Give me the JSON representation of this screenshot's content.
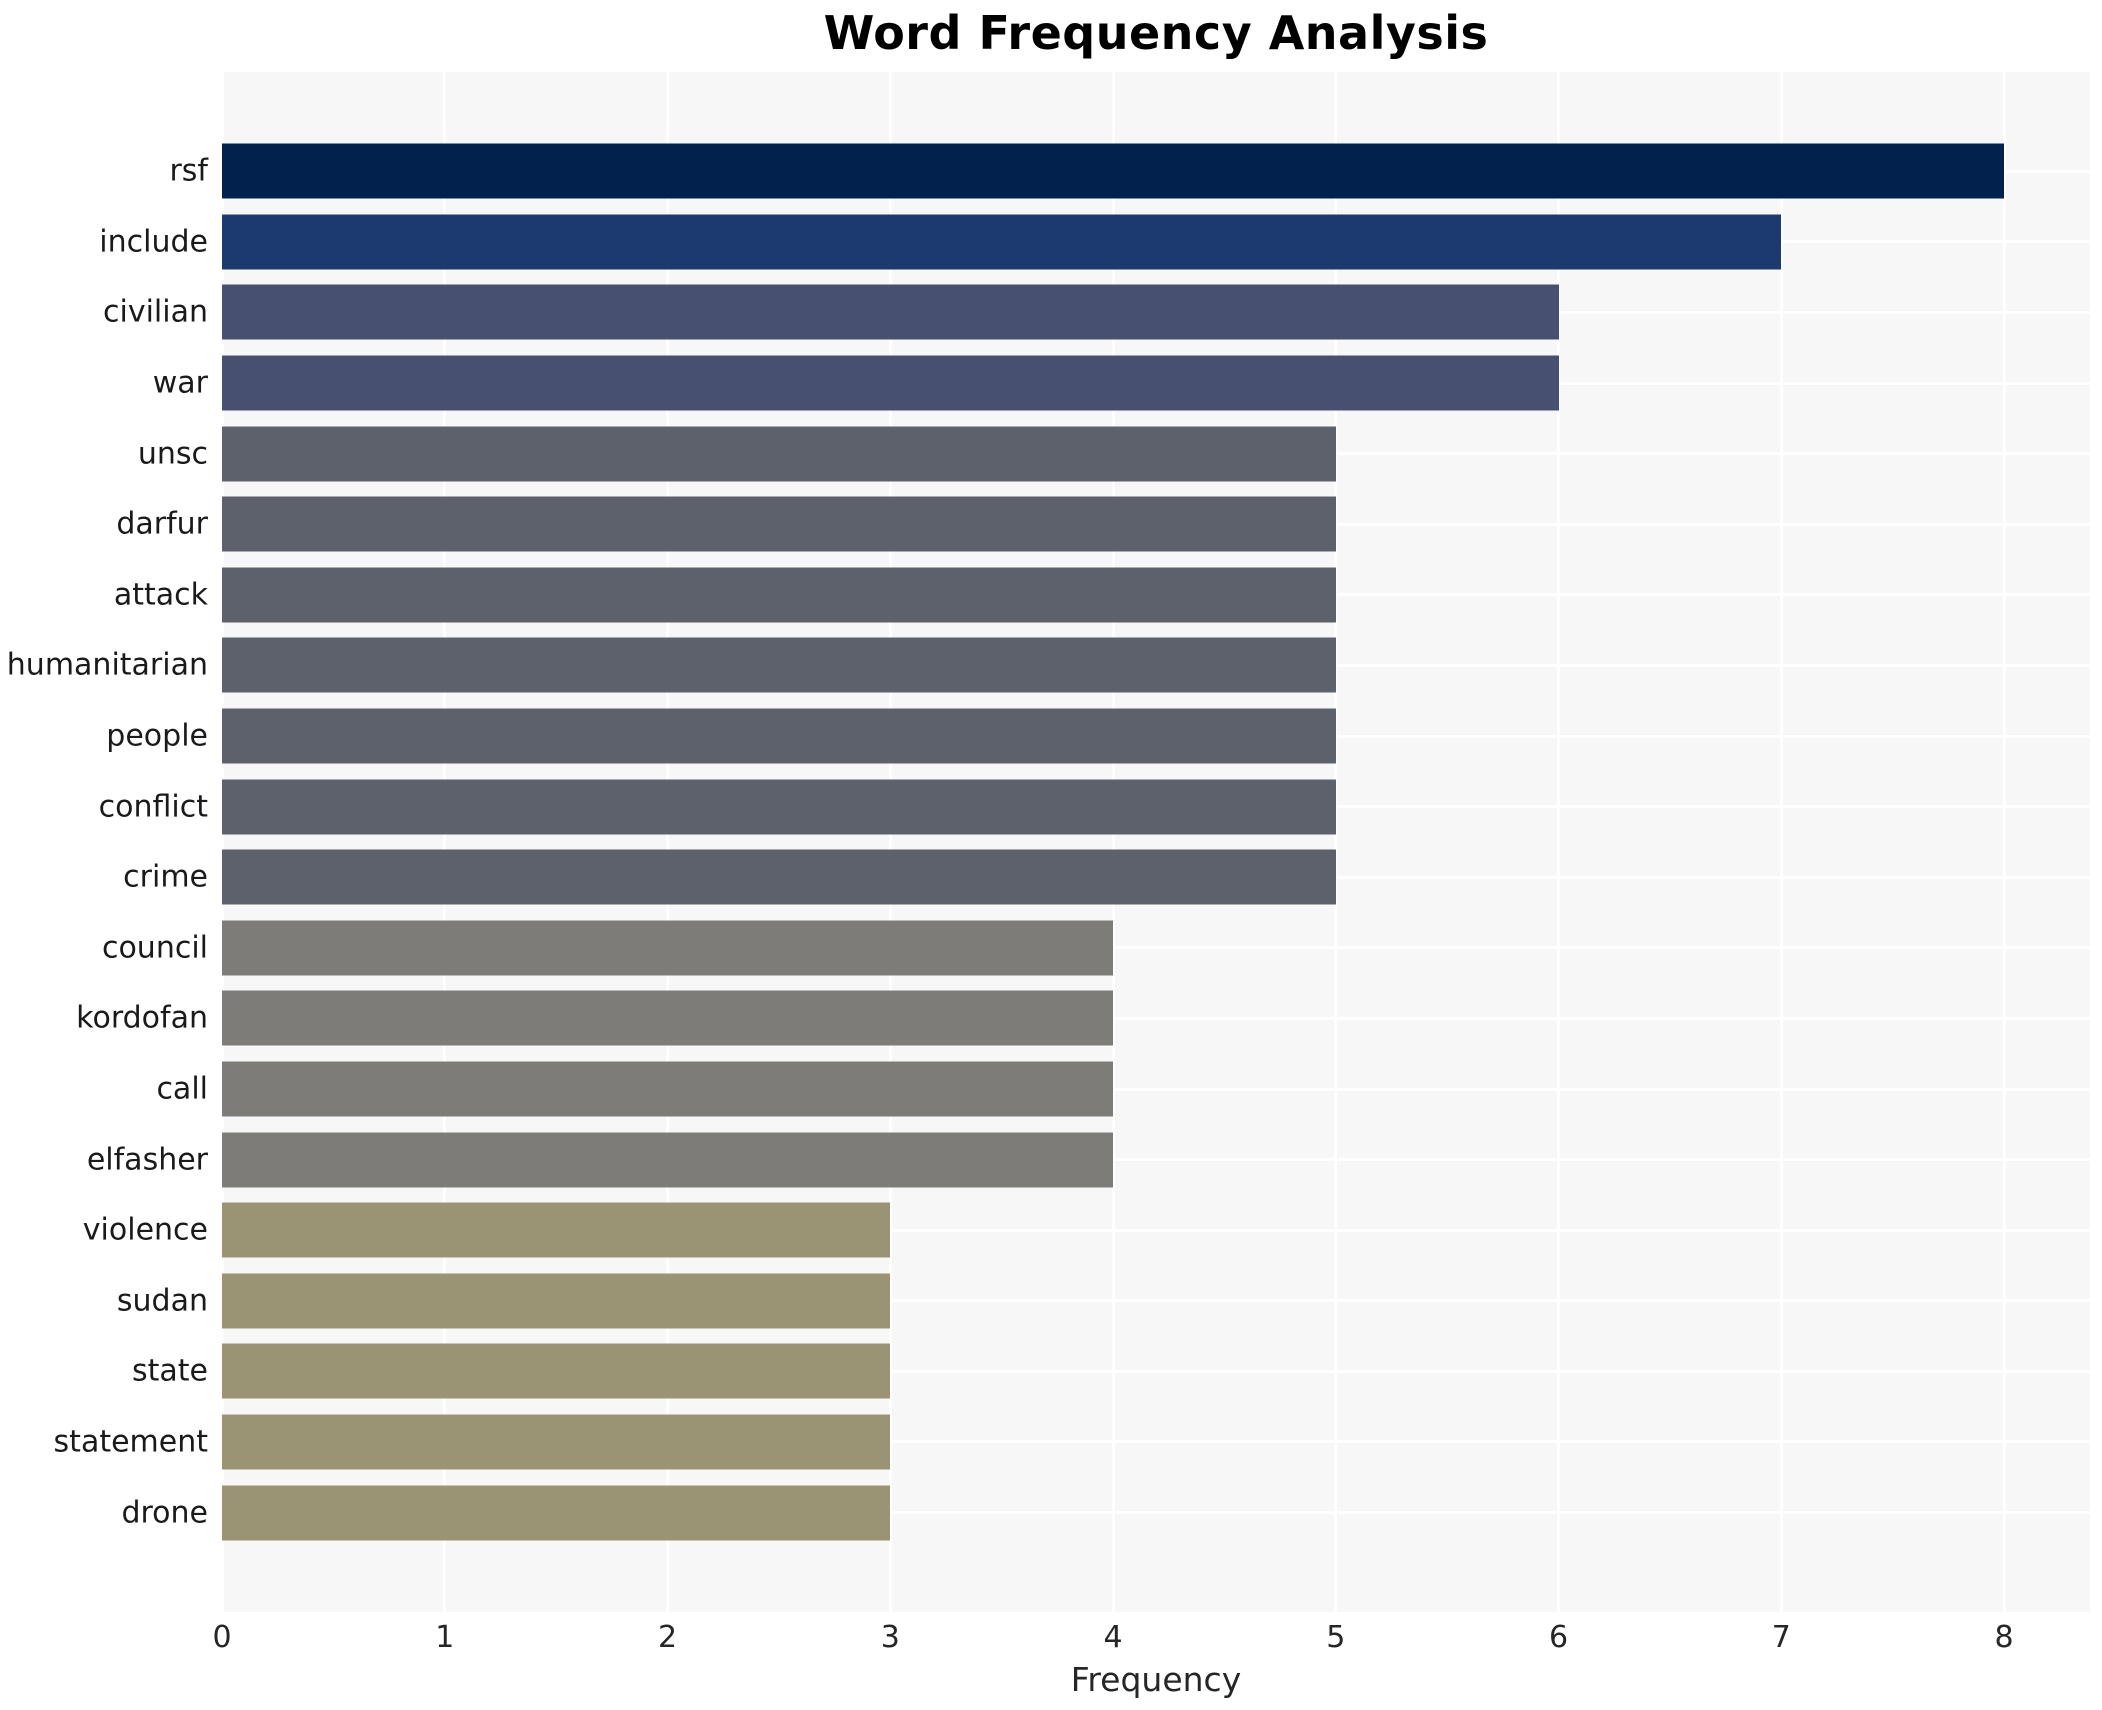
{
  "chart_data": {
    "type": "bar",
    "orientation": "horizontal",
    "title": "Word Frequency Analysis",
    "xlabel": "Frequency",
    "ylabel": "",
    "categories": [
      "rsf",
      "include",
      "civilian",
      "war",
      "unsc",
      "darfur",
      "attack",
      "humanitarian",
      "people",
      "conflict",
      "crime",
      "council",
      "kordofan",
      "call",
      "elfasher",
      "violence",
      "sudan",
      "state",
      "statement",
      "drone"
    ],
    "values": [
      8,
      7,
      6,
      6,
      5,
      5,
      5,
      5,
      5,
      5,
      5,
      4,
      4,
      4,
      4,
      3,
      3,
      3,
      3,
      3
    ],
    "xticks": [
      0,
      1,
      2,
      3,
      4,
      5,
      6,
      7,
      8
    ],
    "xlim": [
      0,
      8.39
    ],
    "grid": true,
    "legend_position": "none",
    "plot_background": "#f7f7f8",
    "gridline_color": "#ffffff",
    "color_by_value": {
      "8": "#02214d",
      "7": "#1d3a6e",
      "6": "#475070",
      "5": "#5d616c",
      "4": "#7d7c78",
      "3": "#9b9474"
    }
  }
}
